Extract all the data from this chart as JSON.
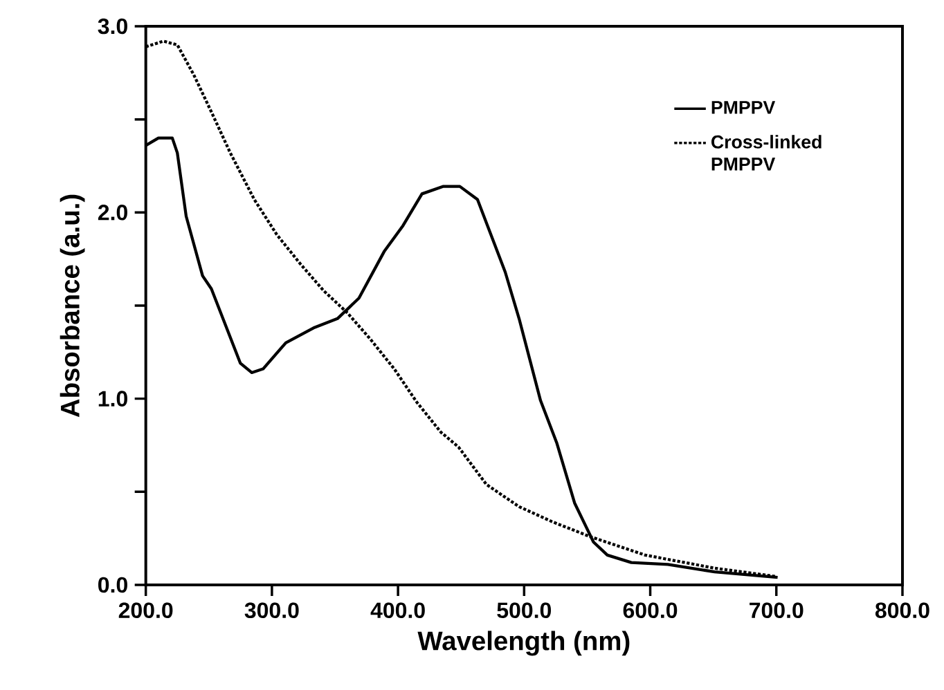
{
  "chart_data": {
    "type": "line",
    "xlabel": "Wavelength (nm)",
    "ylabel": "Absorbance (a.u.)",
    "xlim": [
      200,
      800
    ],
    "ylim": [
      0,
      3
    ],
    "xticks": [
      {
        "value": 200,
        "label": "200.0"
      },
      {
        "value": 300,
        "label": "300.0"
      },
      {
        "value": 400,
        "label": "400.0"
      },
      {
        "value": 500,
        "label": "500.0"
      },
      {
        "value": 600,
        "label": "600.0"
      },
      {
        "value": 700,
        "label": "700.0"
      },
      {
        "value": 800,
        "label": "800.0"
      }
    ],
    "yticks": [
      {
        "value": 0,
        "label": "0.0"
      },
      {
        "value": 0.5,
        "label": null
      },
      {
        "value": 1,
        "label": "1.0"
      },
      {
        "value": 1.5,
        "label": null
      },
      {
        "value": 2,
        "label": "2.0"
      },
      {
        "value": 2.5,
        "label": null
      },
      {
        "value": 3,
        "label": "3.0"
      }
    ],
    "legend": "top right",
    "grid": false,
    "series": [
      {
        "name": "PMPPV",
        "color": "#000000",
        "line_style": "solid",
        "x": [
          200,
          210,
          221,
          225,
          232,
          245,
          252,
          275,
          284,
          293,
          311,
          333,
          352,
          369,
          389,
          404,
          419,
          436,
          449,
          463,
          485,
          496,
          513,
          526,
          540,
          555,
          566,
          585,
          614,
          651,
          701
        ],
        "values": [
          2.36,
          2.4,
          2.4,
          2.32,
          1.98,
          1.66,
          1.59,
          1.19,
          1.14,
          1.16,
          1.3,
          1.38,
          1.43,
          1.54,
          1.79,
          1.93,
          2.1,
          2.14,
          2.14,
          2.07,
          1.68,
          1.43,
          0.99,
          0.76,
          0.44,
          0.23,
          0.16,
          0.12,
          0.11,
          0.07,
          0.04
        ]
      },
      {
        "name": "Cross-linked PMPPV",
        "color": "#000000",
        "line_style": "dotted",
        "x": [
          200,
          214,
          225,
          238,
          252,
          267,
          286,
          304,
          323,
          341,
          360,
          378,
          397,
          415,
          434,
          448,
          470,
          496,
          522,
          552,
          596,
          651,
          700
        ],
        "values": [
          2.89,
          2.92,
          2.9,
          2.74,
          2.54,
          2.32,
          2.07,
          1.88,
          1.72,
          1.58,
          1.46,
          1.32,
          1.16,
          0.98,
          0.82,
          0.74,
          0.54,
          0.42,
          0.34,
          0.26,
          0.16,
          0.09,
          0.045
        ]
      }
    ]
  }
}
